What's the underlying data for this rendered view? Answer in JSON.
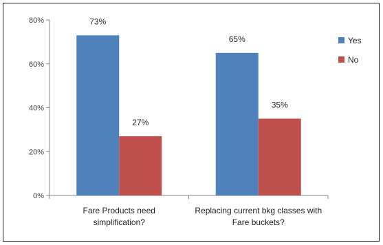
{
  "chart_data": {
    "type": "bar",
    "categories": [
      [
        "Fare Products need",
        "simplification?"
      ],
      [
        "Replacing current bkg classes with",
        "Fare buckets?"
      ]
    ],
    "series": [
      {
        "name": "Yes",
        "color": "#4F81BD",
        "values": [
          73,
          65
        ],
        "labels": [
          "73%",
          "65%"
        ]
      },
      {
        "name": "No",
        "color": "#C0504D",
        "values": [
          27,
          35
        ],
        "labels": [
          "27%",
          "35%"
        ]
      }
    ],
    "ylim": [
      0,
      80
    ],
    "yticks": [
      0,
      20,
      40,
      60,
      80
    ],
    "ytick_labels": [
      "0%",
      "20%",
      "40%",
      "60%",
      "80%"
    ],
    "gridlines": false,
    "legend_position": "right",
    "title": "",
    "xlabel": "",
    "ylabel": ""
  }
}
